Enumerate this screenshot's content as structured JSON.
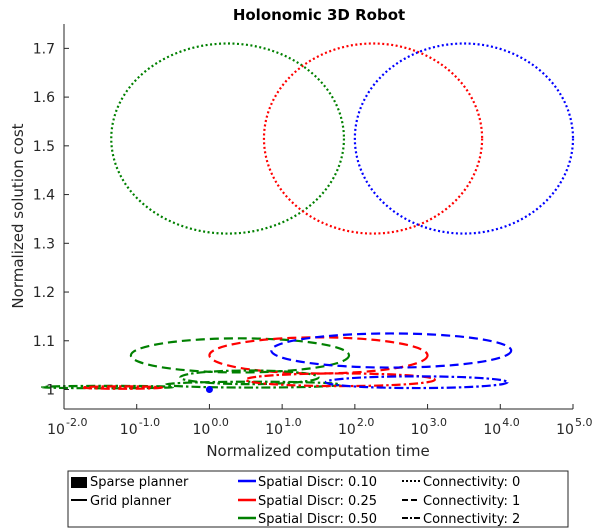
{
  "chart_data": {
    "type": "scatter",
    "title": "Holonomic 3D Robot",
    "xlabel": "Normalized computation time",
    "ylabel": "Normalized solution cost",
    "xscale": "log",
    "xlim": [
      0.01,
      100000
    ],
    "ylim": [
      0.96,
      1.75
    ],
    "xticks": [
      {
        "value": 0.01,
        "base": "10",
        "exp": "-2.0"
      },
      {
        "value": 0.1,
        "base": "10",
        "exp": "-1.0"
      },
      {
        "value": 1,
        "base": "10",
        "exp": "0.0"
      },
      {
        "value": 10,
        "base": "10",
        "exp": "1.0"
      },
      {
        "value": 100,
        "base": "10",
        "exp": "2.0"
      },
      {
        "value": 1000,
        "base": "10",
        "exp": "3.0"
      },
      {
        "value": 10000,
        "base": "10",
        "exp": "4.0"
      },
      {
        "value": 100000,
        "base": "10",
        "exp": "5.0"
      }
    ],
    "yticks": [
      1.0,
      1.1,
      1.2,
      1.3,
      1.4,
      1.5,
      1.6,
      1.7
    ],
    "ytick_labels": [
      "1",
      "1.1",
      "1.2",
      "1.3",
      "1.4",
      "1.5",
      "1.6",
      "1.7"
    ],
    "grid": false,
    "legend_position": "bottom",
    "colors": {
      "0.10": "#0000ff",
      "0.25": "#ff0000",
      "0.50": "#008000",
      "axis": "#262626"
    },
    "ellipses": [
      {
        "discr": "0.50",
        "connectivity": 0,
        "cx_log": 0.25,
        "cy": 1.515,
        "rx_log": 1.6,
        "ry": 0.195
      },
      {
        "discr": "0.25",
        "connectivity": 0,
        "cx_log": 2.25,
        "cy": 1.515,
        "rx_log": 1.5,
        "ry": 0.195
      },
      {
        "discr": "0.10",
        "connectivity": 0,
        "cx_log": 3.5,
        "cy": 1.515,
        "rx_log": 1.5,
        "ry": 0.195
      },
      {
        "discr": "0.50",
        "connectivity": 1,
        "cx_log": 0.42,
        "cy": 1.07,
        "rx_log": 1.5,
        "ry": 0.035
      },
      {
        "discr": "0.25",
        "connectivity": 1,
        "cx_log": 1.5,
        "cy": 1.07,
        "rx_log": 1.5,
        "ry": 0.037
      },
      {
        "discr": "0.10",
        "connectivity": 1,
        "cx_log": 2.5,
        "cy": 1.08,
        "rx_log": 1.65,
        "ry": 0.035
      },
      {
        "discr": "0.50",
        "connectivity": 2,
        "cx_log": -1.4,
        "cy": 1.005,
        "rx_log": 0.9,
        "ry": 0.002
      },
      {
        "discr": "0.50",
        "connectivity": 2,
        "cx_log": 0.55,
        "cy": 1.025,
        "rx_log": 0.95,
        "ry": 0.014
      },
      {
        "discr": "0.50",
        "connectivity": 2,
        "cx_log": 0.6,
        "cy": 1.01,
        "rx_log": 1.2,
        "ry": 0.006
      },
      {
        "discr": "0.25",
        "connectivity": 2,
        "cx_log": -1.2,
        "cy": 1.004,
        "rx_log": 0.55,
        "ry": 0.0025
      },
      {
        "discr": "0.25",
        "connectivity": 2,
        "cx_log": 1.8,
        "cy": 1.02,
        "rx_log": 1.3,
        "ry": 0.013
      },
      {
        "discr": "0.10",
        "connectivity": 2,
        "cx_log": 2.85,
        "cy": 1.015,
        "rx_log": 1.25,
        "ry": 0.012
      }
    ],
    "points": [
      {
        "discr": "0.10",
        "x": 1.0,
        "y": 1.0
      }
    ],
    "legend": {
      "col1": [
        "Sparse planner",
        "Grid planner"
      ],
      "col2": [
        "Spatial Discr: 0.10",
        "Spatial Discr: 0.25",
        "Spatial Discr: 0.50"
      ],
      "col3": [
        "Connectivity: 0",
        "Connectivity: 1",
        "Connectivity: 2"
      ]
    }
  }
}
